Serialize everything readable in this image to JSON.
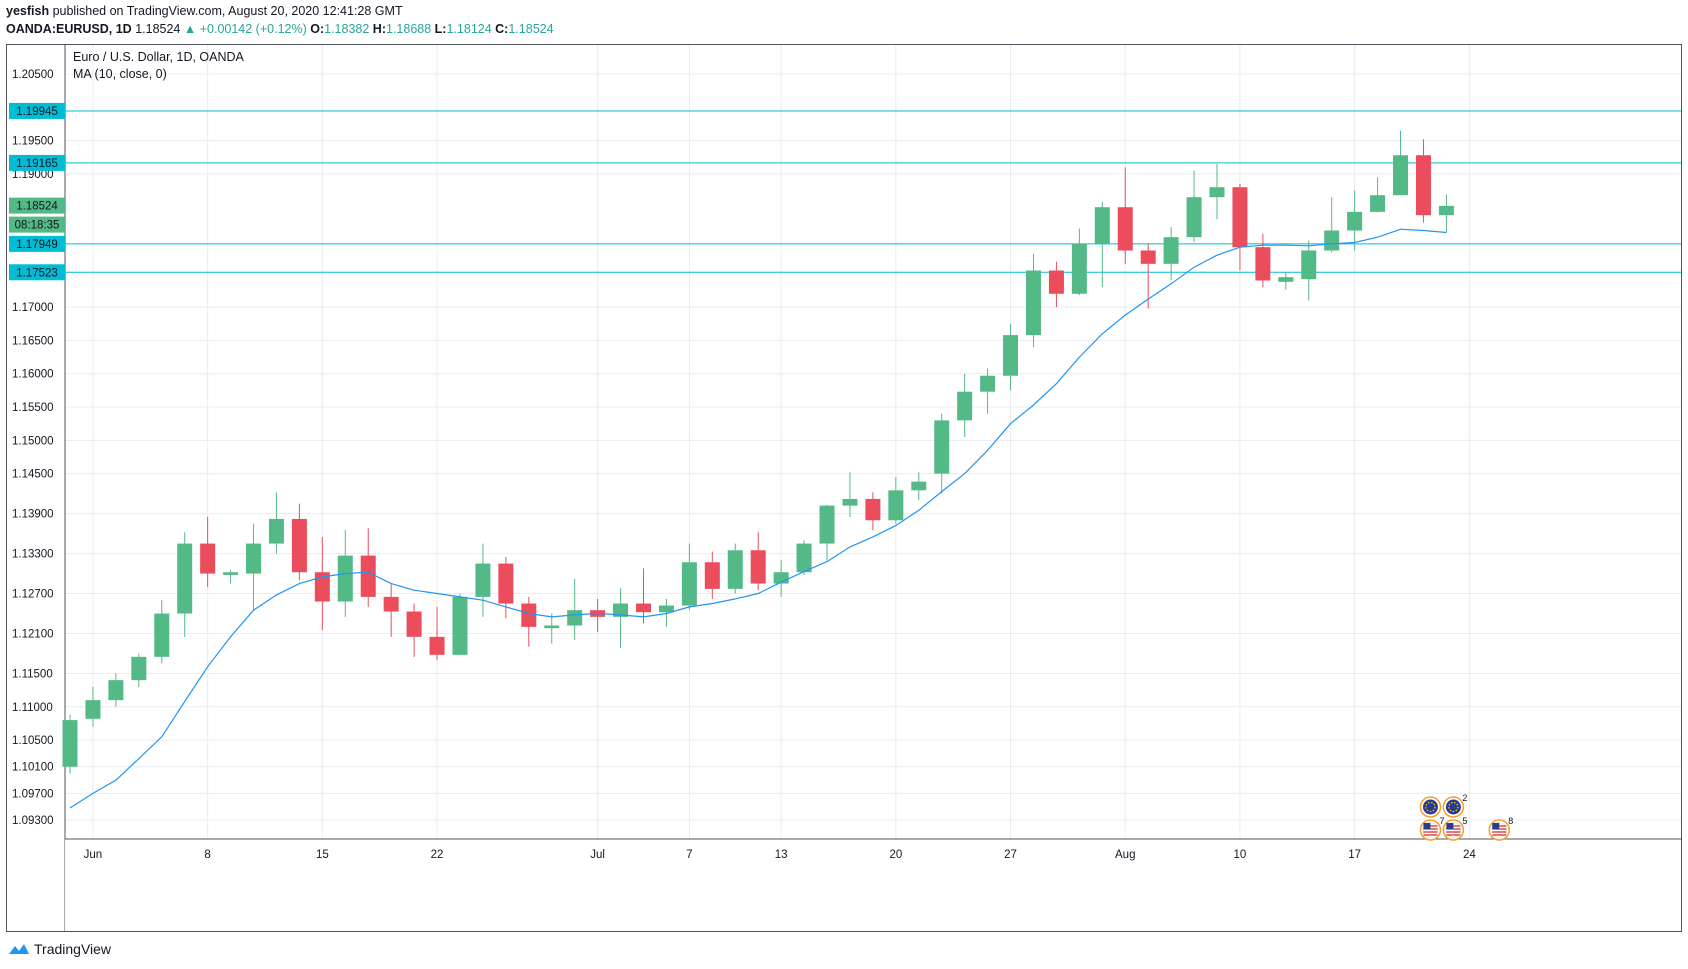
{
  "header": {
    "author": "yesfish",
    "published": "published on TradingView.com, August 20, 2020 12:41:28 GMT",
    "symbol": "OANDA:EURUSD, 1D",
    "last": "1.18524",
    "change": "+0.00142 (+0.12%)",
    "o_label": "O:",
    "o_value": "1.18382",
    "h_label": "H:",
    "h_value": "1.18688",
    "l_label": "L:",
    "l_value": "1.18124",
    "c_label": "C:",
    "c_value": "1.18524"
  },
  "footer": {
    "brand": "TradingView"
  },
  "colors": {
    "up": "#53b987",
    "down": "#eb4d5c",
    "ma": "#2196f3",
    "hline": "#00bcd4",
    "grid": "#e9ecf2"
  },
  "chart_data": {
    "type": "candlestick",
    "title": "Euro / U.S. Dollar, 1D, OANDA",
    "indicator": "MA (10, close, 0)",
    "grid": true,
    "ylim": [
      1.09,
      1.208
    ],
    "y_ticks": [
      "1.20500",
      "1.19500",
      "1.19000",
      "1.17000",
      "1.16500",
      "1.16000",
      "1.15500",
      "1.15000",
      "1.14500",
      "1.13900",
      "1.13300",
      "1.12700",
      "1.12100",
      "1.11500",
      "1.11000",
      "1.10500",
      "1.10100",
      "1.09700",
      "1.09300"
    ],
    "x_ticks": [
      {
        "label": "Jun",
        "index": 1
      },
      {
        "label": "8",
        "index": 6
      },
      {
        "label": "15",
        "index": 11
      },
      {
        "label": "22",
        "index": 16
      },
      {
        "label": "Jul",
        "index": 23
      },
      {
        "label": "7",
        "index": 27
      },
      {
        "label": "13",
        "index": 31
      },
      {
        "label": "20",
        "index": 36
      },
      {
        "label": "27",
        "index": 41
      },
      {
        "label": "Aug",
        "index": 46
      },
      {
        "label": "10",
        "index": 51
      },
      {
        "label": "17",
        "index": 56
      },
      {
        "label": "24",
        "index": 61
      }
    ],
    "horizontal_levels": [
      "1.19945",
      "1.19165",
      "1.17949",
      "1.17523"
    ],
    "last_price_label": "1.18524",
    "countdown": "08:18:35",
    "candles": [
      {
        "o": 1.101,
        "h": 1.1088,
        "l": 1.1,
        "c": 1.108
      },
      {
        "o": 1.1082,
        "h": 1.113,
        "l": 1.107,
        "c": 1.111
      },
      {
        "o": 1.111,
        "h": 1.115,
        "l": 1.11,
        "c": 1.114
      },
      {
        "o": 1.114,
        "h": 1.118,
        "l": 1.113,
        "c": 1.1175
      },
      {
        "o": 1.1175,
        "h": 1.126,
        "l": 1.1165,
        "c": 1.124
      },
      {
        "o": 1.124,
        "h": 1.1362,
        "l": 1.1205,
        "c": 1.1345
      },
      {
        "o": 1.1345,
        "h": 1.1385,
        "l": 1.128,
        "c": 1.13
      },
      {
        "o": 1.1298,
        "h": 1.1305,
        "l": 1.1285,
        "c": 1.1302
      },
      {
        "o": 1.13,
        "h": 1.1375,
        "l": 1.1245,
        "c": 1.1345
      },
      {
        "o": 1.1345,
        "h": 1.1422,
        "l": 1.133,
        "c": 1.1382
      },
      {
        "o": 1.1382,
        "h": 1.1405,
        "l": 1.129,
        "c": 1.1302
      },
      {
        "o": 1.1302,
        "h": 1.1355,
        "l": 1.1215,
        "c": 1.1258
      },
      {
        "o": 1.1258,
        "h": 1.1365,
        "l": 1.1235,
        "c": 1.1327
      },
      {
        "o": 1.1327,
        "h": 1.1368,
        "l": 1.125,
        "c": 1.1265
      },
      {
        "o": 1.1265,
        "h": 1.1285,
        "l": 1.1205,
        "c": 1.1243
      },
      {
        "o": 1.1243,
        "h": 1.1255,
        "l": 1.1175,
        "c": 1.1205
      },
      {
        "o": 1.1205,
        "h": 1.125,
        "l": 1.117,
        "c": 1.1178
      },
      {
        "o": 1.1178,
        "h": 1.127,
        "l": 1.1178,
        "c": 1.1265
      },
      {
        "o": 1.1265,
        "h": 1.1345,
        "l": 1.1235,
        "c": 1.1315
      },
      {
        "o": 1.1315,
        "h": 1.1325,
        "l": 1.1233,
        "c": 1.1255
      },
      {
        "o": 1.1255,
        "h": 1.1265,
        "l": 1.119,
        "c": 1.122
      },
      {
        "o": 1.1218,
        "h": 1.124,
        "l": 1.1195,
        "c": 1.1222
      },
      {
        "o": 1.1222,
        "h": 1.1292,
        "l": 1.12,
        "c": 1.1245
      },
      {
        "o": 1.1245,
        "h": 1.1262,
        "l": 1.1212,
        "c": 1.1235
      },
      {
        "o": 1.1235,
        "h": 1.1278,
        "l": 1.1188,
        "c": 1.1255
      },
      {
        "o": 1.1255,
        "h": 1.1308,
        "l": 1.1225,
        "c": 1.1242
      },
      {
        "o": 1.1242,
        "h": 1.1262,
        "l": 1.122,
        "c": 1.1252
      },
      {
        "o": 1.1252,
        "h": 1.1345,
        "l": 1.1245,
        "c": 1.1317
      },
      {
        "o": 1.1317,
        "h": 1.1333,
        "l": 1.1262,
        "c": 1.1277
      },
      {
        "o": 1.1277,
        "h": 1.1345,
        "l": 1.127,
        "c": 1.1335
      },
      {
        "o": 1.1335,
        "h": 1.1362,
        "l": 1.1275,
        "c": 1.1285
      },
      {
        "o": 1.1285,
        "h": 1.132,
        "l": 1.1265,
        "c": 1.1302
      },
      {
        "o": 1.1302,
        "h": 1.135,
        "l": 1.1298,
        "c": 1.1345
      },
      {
        "o": 1.1345,
        "h": 1.1403,
        "l": 1.132,
        "c": 1.1402
      },
      {
        "o": 1.1402,
        "h": 1.1452,
        "l": 1.1385,
        "c": 1.1412
      },
      {
        "o": 1.1412,
        "h": 1.1422,
        "l": 1.1365,
        "c": 1.138
      },
      {
        "o": 1.138,
        "h": 1.1445,
        "l": 1.1375,
        "c": 1.1425
      },
      {
        "o": 1.1425,
        "h": 1.1452,
        "l": 1.141,
        "c": 1.1438
      },
      {
        "o": 1.145,
        "h": 1.154,
        "l": 1.142,
        "c": 1.153
      },
      {
        "o": 1.153,
        "h": 1.16,
        "l": 1.1505,
        "c": 1.1573
      },
      {
        "o": 1.1573,
        "h": 1.1608,
        "l": 1.154,
        "c": 1.1597
      },
      {
        "o": 1.1597,
        "h": 1.1675,
        "l": 1.1575,
        "c": 1.1658
      },
      {
        "o": 1.1658,
        "h": 1.178,
        "l": 1.164,
        "c": 1.1755
      },
      {
        "o": 1.1755,
        "h": 1.1768,
        "l": 1.17,
        "c": 1.172
      },
      {
        "o": 1.172,
        "h": 1.1818,
        "l": 1.1718,
        "c": 1.1795
      },
      {
        "o": 1.1795,
        "h": 1.1858,
        "l": 1.173,
        "c": 1.185
      },
      {
        "o": 1.185,
        "h": 1.191,
        "l": 1.1765,
        "c": 1.1785
      },
      {
        "o": 1.1785,
        "h": 1.1795,
        "l": 1.1698,
        "c": 1.1765
      },
      {
        "o": 1.1765,
        "h": 1.182,
        "l": 1.174,
        "c": 1.1805
      },
      {
        "o": 1.1805,
        "h": 1.1905,
        "l": 1.1798,
        "c": 1.1865
      },
      {
        "o": 1.1865,
        "h": 1.1915,
        "l": 1.1832,
        "c": 1.188
      },
      {
        "o": 1.188,
        "h": 1.1885,
        "l": 1.1755,
        "c": 1.179
      },
      {
        "o": 1.179,
        "h": 1.181,
        "l": 1.173,
        "c": 1.174
      },
      {
        "o": 1.1738,
        "h": 1.1752,
        "l": 1.1726,
        "c": 1.1745
      },
      {
        "o": 1.1742,
        "h": 1.18,
        "l": 1.171,
        "c": 1.1785
      },
      {
        "o": 1.1785,
        "h": 1.1865,
        "l": 1.1782,
        "c": 1.1815
      },
      {
        "o": 1.1815,
        "h": 1.1875,
        "l": 1.1785,
        "c": 1.1843
      },
      {
        "o": 1.1843,
        "h": 1.1895,
        "l": 1.1842,
        "c": 1.1868
      },
      {
        "o": 1.1868,
        "h": 1.1965,
        "l": 1.1868,
        "c": 1.1928
      },
      {
        "o": 1.1928,
        "h": 1.1952,
        "l": 1.1827,
        "c": 1.1838
      },
      {
        "o": 1.1838,
        "h": 1.1869,
        "l": 1.1812,
        "c": 1.1852
      }
    ],
    "ma_values": [
      1.0948,
      1.097,
      1.099,
      1.1022,
      1.1055,
      1.1108,
      1.116,
      1.1205,
      1.1245,
      1.1268,
      1.1285,
      1.1295,
      1.13,
      1.1302,
      1.1285,
      1.1275,
      1.127,
      1.1265,
      1.126,
      1.125,
      1.124,
      1.1235,
      1.1238,
      1.124,
      1.1238,
      1.1235,
      1.124,
      1.125,
      1.1255,
      1.1262,
      1.127,
      1.1287,
      1.1303,
      1.1318,
      1.134,
      1.1355,
      1.1372,
      1.1395,
      1.1423,
      1.145,
      1.1485,
      1.1525,
      1.1553,
      1.1585,
      1.1625,
      1.166,
      1.1688,
      1.1712,
      1.1735,
      1.176,
      1.1778,
      1.179,
      1.1793,
      1.1793,
      1.1792,
      1.1795,
      1.1797,
      1.1805,
      1.1817,
      1.1815,
      1.1812
    ],
    "event_icons": [
      {
        "index": 59,
        "row": 0,
        "flag": "eu",
        "count": ""
      },
      {
        "index": 60,
        "row": 0,
        "flag": "eu",
        "count": "2"
      },
      {
        "index": 59,
        "row": 1,
        "flag": "us",
        "count": "7"
      },
      {
        "index": 60,
        "row": 1,
        "flag": "us",
        "count": "5"
      },
      {
        "index": 62,
        "row": 1,
        "flag": "us",
        "count": "8"
      }
    ]
  }
}
